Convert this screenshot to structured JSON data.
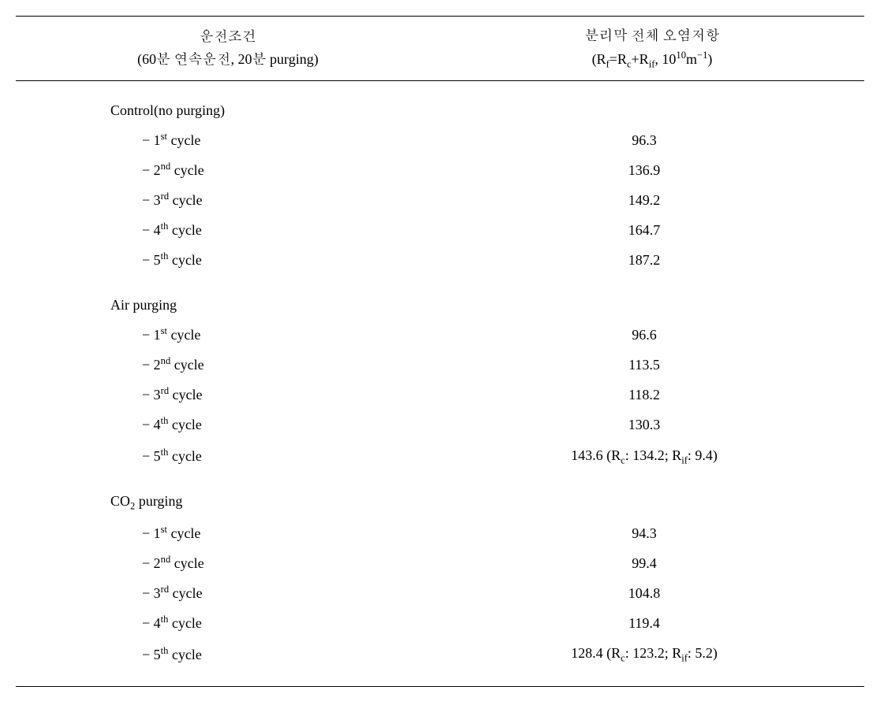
{
  "header": {
    "left_line1": "운전조건",
    "left_line2_a": "(60분 연속운전, 20분 purging)",
    "right_line1": "분리막 전체 오염저항",
    "right_line2_prefix": "(R",
    "right_line2_f": "f",
    "right_line2_eq": "=R",
    "right_line2_c": "c",
    "right_line2_plus": "+R",
    "right_line2_if": "if",
    "right_line2_comma": ", 10",
    "right_line2_exp": "10",
    "right_line2_unit_m": "m",
    "right_line2_unitexp": "−1",
    "right_line2_close": ")"
  },
  "groups": [
    {
      "title": "Control(no purging)",
      "rows": [
        {
          "ord_pre": "− 1",
          "ord_sup": "st",
          "ord_post": " cycle",
          "val": "96.3"
        },
        {
          "ord_pre": "− 2",
          "ord_sup": "nd",
          "ord_post": " cycle",
          "val": "136.9"
        },
        {
          "ord_pre": "− 3",
          "ord_sup": "rd",
          "ord_post": " cycle",
          "val": "149.2"
        },
        {
          "ord_pre": "− 4",
          "ord_sup": "th",
          "ord_post": " cycle",
          "val": "164.7"
        },
        {
          "ord_pre": "− 5",
          "ord_sup": "th",
          "ord_post": " cycle",
          "val": "187.2"
        }
      ]
    },
    {
      "title": "Air purging",
      "rows": [
        {
          "ord_pre": "− 1",
          "ord_sup": "st",
          "ord_post": " cycle",
          "val": "96.6"
        },
        {
          "ord_pre": "− 2",
          "ord_sup": "nd",
          "ord_post": " cycle",
          "val": "113.5"
        },
        {
          "ord_pre": "− 3",
          "ord_sup": "rd",
          "ord_post": " cycle",
          "val": "118.2"
        },
        {
          "ord_pre": "− 4",
          "ord_sup": "th",
          "ord_post": " cycle",
          "val": "130.3"
        },
        {
          "ord_pre": "− 5",
          "ord_sup": "th",
          "ord_post": " cycle",
          "val_pre": "143.6 (R",
          "val_sub1": "c",
          "val_mid1": ": 134.2; R",
          "val_sub2": "if",
          "val_post": ": 9.4)"
        }
      ]
    },
    {
      "title_pre": "CO",
      "title_sub": "2",
      "title_post": " purging",
      "rows": [
        {
          "ord_pre": "− 1",
          "ord_sup": "st",
          "ord_post": " cycle",
          "val": "94.3"
        },
        {
          "ord_pre": "− 2",
          "ord_sup": "nd",
          "ord_post": " cycle",
          "val": "99.4"
        },
        {
          "ord_pre": "− 3",
          "ord_sup": "rd",
          "ord_post": " cycle",
          "val": "104.8"
        },
        {
          "ord_pre": "− 4",
          "ord_sup": "th",
          "ord_post": " cycle",
          "val": "119.4"
        },
        {
          "ord_pre": "− 5",
          "ord_sup": "th",
          "ord_post": " cycle",
          "val_pre": "128.4 (R",
          "val_sub1": "c",
          "val_mid1": ": 123.2; R",
          "val_sub2": "if",
          "val_post": ": 5.2)"
        }
      ]
    }
  ]
}
